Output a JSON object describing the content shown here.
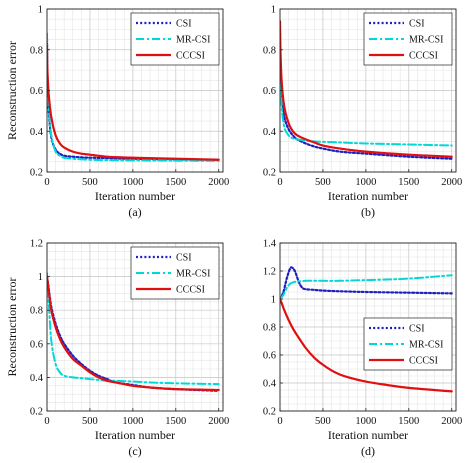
{
  "figure": {
    "legend_names": [
      "CSI",
      "MR-CSI",
      "CCCSI"
    ],
    "series_colors": {
      "CSI": "#1f1fbf",
      "MR-CSI": "#00d8d8",
      "CCCSI": "#e01010"
    }
  },
  "chart_data": [
    {
      "type": "line",
      "caption": "(a)",
      "xlabel": "Iteration number",
      "ylabel": "Reconstruction error",
      "xlim": [
        0,
        2050
      ],
      "ylim": [
        0.2,
        1.0
      ],
      "xticks": [
        0,
        500,
        1000,
        1500,
        2000
      ],
      "yticks": [
        0.2,
        0.4,
        0.6,
        0.8,
        1.0
      ],
      "ytick_labels": [
        "0.2",
        "0.4",
        "0.6",
        "0.8",
        "1"
      ],
      "grid": true,
      "legend_position": "top-right",
      "series": [
        {
          "name": "CSI",
          "x": [
            0,
            5,
            20,
            50,
            100,
            150,
            200,
            300,
            400,
            500,
            700,
            1000,
            1500,
            2000
          ],
          "y": [
            0.85,
            0.66,
            0.5,
            0.37,
            0.31,
            0.29,
            0.28,
            0.275,
            0.272,
            0.27,
            0.268,
            0.265,
            0.262,
            0.26
          ]
        },
        {
          "name": "MR-CSI",
          "x": [
            0,
            5,
            20,
            50,
            100,
            150,
            200,
            300,
            400,
            500,
            700,
            1000,
            1500,
            2000
          ],
          "y": [
            0.88,
            0.7,
            0.52,
            0.38,
            0.3,
            0.28,
            0.27,
            0.265,
            0.262,
            0.26,
            0.258,
            0.257,
            0.256,
            0.255
          ]
        },
        {
          "name": "CCCSI",
          "x": [
            0,
            5,
            20,
            50,
            100,
            150,
            200,
            300,
            400,
            500,
            700,
            1000,
            1500,
            2000
          ],
          "y": [
            0.82,
            0.7,
            0.58,
            0.47,
            0.38,
            0.34,
            0.32,
            0.3,
            0.29,
            0.285,
            0.275,
            0.27,
            0.265,
            0.26
          ]
        }
      ]
    },
    {
      "type": "line",
      "caption": "(b)",
      "xlabel": "Iteration number",
      "ylabel": "",
      "xlim": [
        0,
        2050
      ],
      "ylim": [
        0.2,
        1.0
      ],
      "xticks": [
        0,
        500,
        1000,
        1500,
        2000
      ],
      "yticks": [
        0.2,
        0.4,
        0.6,
        0.8,
        1.0
      ],
      "ytick_labels": [
        "0.2",
        "0.4",
        "0.6",
        "0.8",
        "1"
      ],
      "grid": true,
      "legend_position": "top-right",
      "series": [
        {
          "name": "CSI",
          "x": [
            0,
            5,
            20,
            50,
            100,
            150,
            200,
            300,
            400,
            500,
            700,
            1000,
            1500,
            2000
          ],
          "y": [
            0.88,
            0.74,
            0.58,
            0.47,
            0.41,
            0.38,
            0.36,
            0.34,
            0.325,
            0.315,
            0.3,
            0.29,
            0.275,
            0.265
          ]
        },
        {
          "name": "MR-CSI",
          "x": [
            0,
            5,
            20,
            50,
            100,
            150,
            200,
            300,
            400,
            500,
            700,
            1000,
            1500,
            2000
          ],
          "y": [
            0.88,
            0.7,
            0.52,
            0.42,
            0.38,
            0.365,
            0.36,
            0.355,
            0.35,
            0.348,
            0.345,
            0.34,
            0.335,
            0.33
          ]
        },
        {
          "name": "CCCSI",
          "x": [
            0,
            5,
            20,
            50,
            100,
            150,
            200,
            300,
            400,
            500,
            700,
            1000,
            1500,
            2000
          ],
          "y": [
            0.94,
            0.8,
            0.64,
            0.52,
            0.44,
            0.4,
            0.38,
            0.36,
            0.345,
            0.33,
            0.315,
            0.3,
            0.285,
            0.275
          ]
        }
      ]
    },
    {
      "type": "line",
      "caption": "(c)",
      "xlabel": "Iteration number",
      "ylabel": "Reconstruction error",
      "xlim": [
        0,
        2050
      ],
      "ylim": [
        0.2,
        1.2
      ],
      "xticks": [
        0,
        500,
        1000,
        1500,
        2000
      ],
      "yticks": [
        0.2,
        0.4,
        0.6,
        0.8,
        1.0,
        1.2
      ],
      "ytick_labels": [
        "0.2",
        "0.4",
        "0.6",
        "0.8",
        "1",
        "1.2"
      ],
      "grid": true,
      "legend_position": "top-right",
      "series": [
        {
          "name": "CSI",
          "x": [
            0,
            20,
            50,
            100,
            150,
            200,
            300,
            400,
            500,
            600,
            700,
            800,
            1000,
            1200,
            1500,
            2000
          ],
          "y": [
            1.0,
            0.93,
            0.82,
            0.72,
            0.65,
            0.6,
            0.53,
            0.48,
            0.44,
            0.41,
            0.39,
            0.37,
            0.355,
            0.34,
            0.33,
            0.32
          ]
        },
        {
          "name": "MR-CSI",
          "x": [
            0,
            20,
            50,
            100,
            150,
            200,
            300,
            400,
            500,
            600,
            700,
            800,
            1000,
            1200,
            1500,
            2000
          ],
          "y": [
            1.02,
            0.85,
            0.62,
            0.48,
            0.43,
            0.41,
            0.4,
            0.395,
            0.39,
            0.385,
            0.38,
            0.38,
            0.375,
            0.37,
            0.365,
            0.36
          ]
        },
        {
          "name": "CCCSI",
          "x": [
            0,
            20,
            50,
            100,
            150,
            200,
            300,
            400,
            500,
            600,
            700,
            800,
            1000,
            1200,
            1500,
            2000
          ],
          "y": [
            1.0,
            0.92,
            0.8,
            0.7,
            0.63,
            0.58,
            0.51,
            0.47,
            0.43,
            0.4,
            0.38,
            0.37,
            0.35,
            0.34,
            0.33,
            0.325
          ]
        }
      ]
    },
    {
      "type": "line",
      "caption": "(d)",
      "xlabel": "Iteration number",
      "ylabel": "",
      "xlim": [
        0,
        2050
      ],
      "ylim": [
        0.2,
        1.4
      ],
      "xticks": [
        0,
        500,
        1000,
        1500,
        2000
      ],
      "yticks": [
        0.2,
        0.4,
        0.6,
        0.8,
        1.0,
        1.2,
        1.4
      ],
      "ytick_labels": [
        "0.2",
        "0.4",
        "0.6",
        "0.8",
        "1",
        "1.2",
        "1.4"
      ],
      "grid": true,
      "legend_position": "center-right",
      "series": [
        {
          "name": "CSI",
          "x": [
            0,
            40,
            80,
            120,
            150,
            180,
            220,
            260,
            300,
            400,
            500,
            700,
            1000,
            1500,
            2000
          ],
          "y": [
            1.0,
            1.05,
            1.15,
            1.22,
            1.22,
            1.19,
            1.12,
            1.08,
            1.07,
            1.065,
            1.06,
            1.055,
            1.05,
            1.045,
            1.04
          ]
        },
        {
          "name": "MR-CSI",
          "x": [
            0,
            40,
            80,
            120,
            160,
            200,
            300,
            400,
            500,
            700,
            1000,
            1300,
            1600,
            2000
          ],
          "y": [
            1.0,
            1.03,
            1.08,
            1.11,
            1.12,
            1.125,
            1.13,
            1.13,
            1.13,
            1.13,
            1.135,
            1.14,
            1.15,
            1.17
          ]
        },
        {
          "name": "CCCSI",
          "x": [
            0,
            20,
            50,
            100,
            150,
            200,
            300,
            400,
            500,
            600,
            700,
            800,
            1000,
            1200,
            1500,
            2000
          ],
          "y": [
            1.0,
            0.97,
            0.92,
            0.85,
            0.79,
            0.74,
            0.65,
            0.58,
            0.53,
            0.49,
            0.46,
            0.44,
            0.41,
            0.39,
            0.365,
            0.34
          ]
        }
      ]
    }
  ]
}
